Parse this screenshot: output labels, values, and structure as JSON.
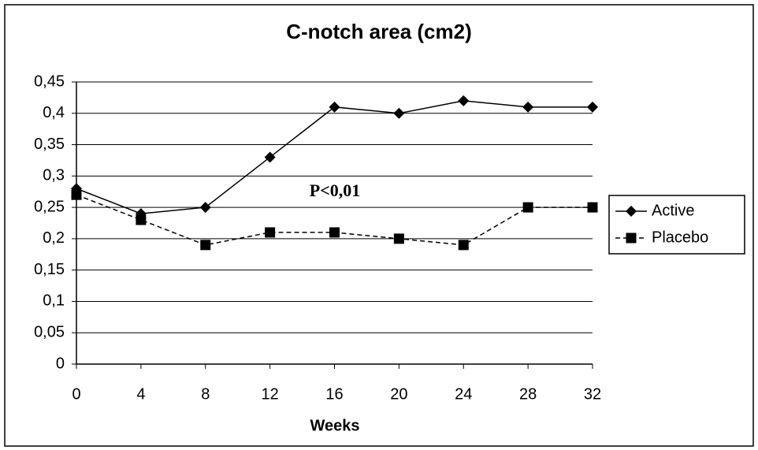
{
  "chart_data": {
    "type": "line",
    "title": "C-notch area (cm2)",
    "x_label": "Weeks",
    "annotation": "P<0,01",
    "x": [
      0,
      4,
      8,
      12,
      16,
      20,
      24,
      28,
      32
    ],
    "series": [
      {
        "name": "Active",
        "color": "#000000",
        "line_style": "solid",
        "marker": "diamond",
        "values": [
          0.28,
          0.24,
          0.25,
          0.33,
          0.41,
          0.4,
          0.42,
          0.41,
          0.41
        ]
      },
      {
        "name": "Placebo",
        "color": "#000000",
        "line_style": "dashed",
        "marker": "square",
        "values": [
          0.27,
          0.23,
          0.19,
          0.21,
          0.21,
          0.2,
          0.19,
          0.25,
          0.25
        ]
      }
    ],
    "xlim": [
      0,
      32
    ],
    "xticks": [
      0,
      4,
      8,
      12,
      16,
      20,
      24,
      28,
      32
    ],
    "ylim": [
      0,
      0.45
    ],
    "yticks": [
      0,
      {
        "value": 0.05,
        "label": "0,05"
      },
      {
        "value": 0.1,
        "label": "0,1"
      },
      {
        "value": 0.15,
        "label": "0,15"
      },
      {
        "value": 0.2,
        "label": "0,2"
      },
      {
        "value": 0.25,
        "label": "0,25"
      },
      {
        "value": 0.3,
        "label": "0,3"
      },
      {
        "value": 0.35,
        "label": "0,35"
      },
      {
        "value": 0.4,
        "label": "0,4"
      },
      {
        "value": 0.45,
        "label": "0,45"
      }
    ],
    "grid": true,
    "legend": "right"
  }
}
